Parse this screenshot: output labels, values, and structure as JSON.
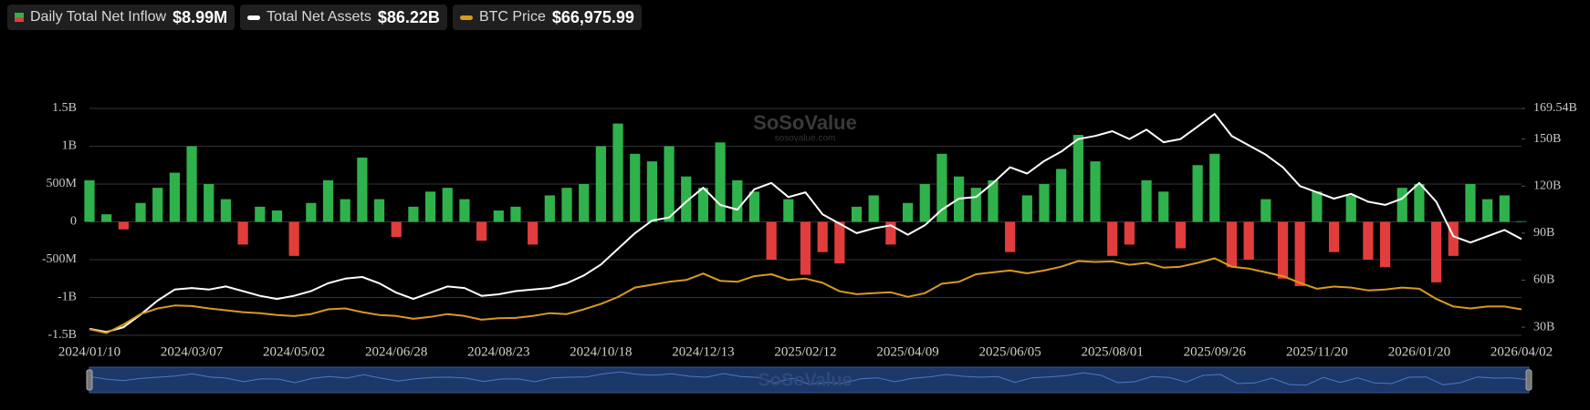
{
  "chart_data": {
    "type": "bar",
    "watermark": "SoSoValue",
    "watermark_sub": "sosovalue.com",
    "categories": [
      "2024/01/10",
      null,
      null,
      null,
      null,
      null,
      "2024/03/07",
      null,
      null,
      null,
      null,
      null,
      "2024/05/02",
      null,
      null,
      null,
      null,
      null,
      "2024/06/28",
      null,
      null,
      null,
      null,
      null,
      "2024/08/23",
      null,
      null,
      null,
      null,
      null,
      "2024/10/18",
      null,
      null,
      null,
      null,
      null,
      "2024/12/13",
      null,
      null,
      null,
      null,
      null,
      "2025/02/12",
      null,
      null,
      null,
      null,
      null,
      "2025/04/09",
      null,
      null,
      null,
      null,
      null,
      "2025/06/05",
      null,
      null,
      null,
      null,
      null,
      "2025/08/01",
      null,
      null,
      null,
      null,
      null,
      "2025/09/26",
      null,
      null,
      null,
      null,
      null,
      "2025/11/20",
      null,
      null,
      null,
      null,
      null,
      "2026/01/20",
      null,
      null,
      null,
      null,
      null,
      "2026/04/02"
    ],
    "series": [
      {
        "name": "Daily Total Net Inflow",
        "type": "bar",
        "color": "#2fb24c",
        "negative_color": "#e23d3d",
        "latest_label": "$8.99M",
        "values": [
          0.55,
          0.1,
          -0.1,
          0.25,
          0.45,
          0.65,
          1.0,
          0.5,
          0.3,
          -0.3,
          0.2,
          0.15,
          -0.45,
          0.25,
          0.55,
          0.3,
          0.85,
          0.3,
          -0.2,
          0.2,
          0.4,
          0.45,
          0.3,
          -0.25,
          0.15,
          0.2,
          -0.3,
          0.35,
          0.45,
          0.5,
          1.0,
          1.3,
          0.9,
          0.8,
          1.0,
          0.6,
          0.45,
          1.05,
          0.55,
          0.4,
          -0.5,
          0.3,
          -0.7,
          -0.4,
          -0.55,
          0.2,
          0.35,
          -0.3,
          0.25,
          0.5,
          0.9,
          0.6,
          0.45,
          0.55,
          -0.4,
          0.35,
          0.5,
          0.7,
          1.15,
          0.8,
          -0.45,
          -0.3,
          0.55,
          0.4,
          -0.35,
          0.75,
          0.9,
          -0.6,
          -0.5,
          0.3,
          -0.75,
          -0.85,
          0.4,
          -0.4,
          0.35,
          -0.5,
          -0.6,
          0.45,
          0.5,
          -0.8,
          -0.45,
          0.5,
          0.3,
          0.35,
          0.00899
        ]
      },
      {
        "name": "Total Net Assets",
        "type": "line",
        "axis": "y2",
        "color": "#ffffff",
        "latest_label": "$86.22B",
        "values": [
          29,
          27,
          30,
          38,
          47,
          54,
          55,
          54,
          56,
          53,
          50,
          48,
          50,
          53,
          58,
          61,
          62,
          58,
          52,
          48,
          52,
          56,
          55,
          50,
          51,
          53,
          54,
          55,
          58,
          63,
          70,
          80,
          90,
          98,
          100,
          110,
          119,
          108,
          105,
          118,
          122,
          113,
          116,
          102,
          96,
          90,
          93,
          95,
          89,
          95,
          105,
          112,
          113,
          122,
          132,
          128,
          136,
          142,
          150,
          152,
          155,
          150,
          156,
          148,
          150,
          158,
          166,
          152,
          146,
          140,
          132,
          120,
          116,
          112,
          115,
          110,
          108,
          112,
          122,
          110,
          88,
          84,
          88,
          92,
          86.22
        ]
      },
      {
        "name": "BTC Price",
        "type": "line",
        "axis": "y3",
        "color": "#d99a1f",
        "latest_label": "$66,975.99",
        "values": [
          46000,
          42000,
          51000,
          62000,
          68000,
          71000,
          70500,
          68000,
          66000,
          64000,
          63000,
          61000,
          59900,
          62000,
          67000,
          68000,
          64000,
          61000,
          60000,
          57000,
          59000,
          62000,
          60000,
          56000,
          57700,
          58000,
          60000,
          63000,
          62000,
          67000,
          72700,
          80000,
          90000,
          93000,
          96000,
          98000,
          104800,
          97000,
          96000,
          102000,
          104000,
          98000,
          99400,
          95000,
          86000,
          83000,
          84000,
          85000,
          80200,
          84000,
          94000,
          96000,
          104000,
          106000,
          108000,
          105000,
          108000,
          112000,
          118000,
          117000,
          117600,
          114000,
          116000,
          111000,
          112000,
          116000,
          120800,
          112000,
          110000,
          106000,
          102000,
          95000,
          88700,
          91000,
          90000,
          87000,
          88000,
          90000,
          88700,
          78000,
          70000,
          68000,
          70000,
          70000,
          66975.99
        ]
      }
    ],
    "ylim": [
      -1.5,
      1.5
    ],
    "yticks": [
      {
        "value": 1.5,
        "label": "1.5B"
      },
      {
        "value": 1,
        "label": "1B"
      },
      {
        "value": 0.5,
        "label": "500M"
      },
      0,
      {
        "value": -0.5,
        "label": "-500M"
      },
      {
        "value": -1,
        "label": "-1B"
      },
      {
        "value": -1.5,
        "label": "-1.5B"
      }
    ],
    "y2lim": [
      24.83,
      169.54
    ],
    "y2ticks": [
      {
        "value": 169.54,
        "label": "169.54B"
      },
      {
        "value": 150,
        "label": "150B"
      },
      {
        "value": 120,
        "label": "120B"
      },
      {
        "value": 90,
        "label": "90B"
      },
      {
        "value": 60,
        "label": "60B"
      },
      {
        "value": 30,
        "label": "30B"
      }
    ],
    "y3lim": [
      39600,
      279000
    ],
    "grid": true
  }
}
